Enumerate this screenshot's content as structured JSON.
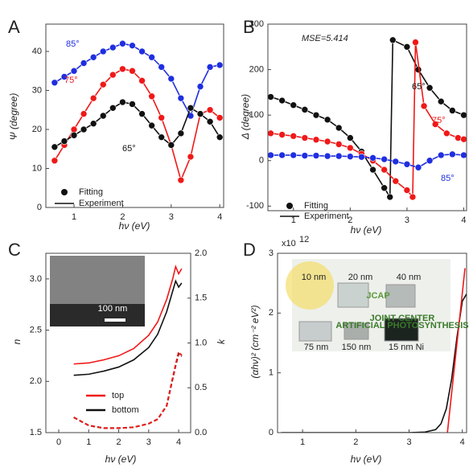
{
  "chart_data": [
    {
      "type": "line",
      "panel": "A",
      "xlabel": "hν (eV)",
      "ylabel": "Ψ (degree)",
      "xlim": [
        0.42,
        4.08
      ],
      "ylim": [
        0,
        47
      ],
      "xticks": [
        1,
        2,
        3,
        4
      ],
      "yticks": [
        0,
        10,
        20,
        30,
        40
      ],
      "legend": [
        "Fitting",
        "Experiment"
      ],
      "series": [
        {
          "name": "85°",
          "color": "#1f2ee0",
          "x": [
            0.6,
            0.8,
            1.0,
            1.2,
            1.4,
            1.6,
            1.8,
            2.0,
            2.2,
            2.4,
            2.6,
            2.8,
            3.0,
            3.2,
            3.4,
            3.6,
            3.8,
            4.0
          ],
          "values": [
            32,
            33.5,
            35,
            37,
            38.5,
            40,
            41,
            42,
            41.5,
            40,
            38.5,
            36,
            33,
            28,
            23.5,
            31,
            36,
            36.5
          ]
        },
        {
          "name": "75°",
          "color": "#f01818",
          "x": [
            0.6,
            0.8,
            1.0,
            1.2,
            1.4,
            1.6,
            1.8,
            2.0,
            2.2,
            2.4,
            2.6,
            2.8,
            3.0,
            3.2,
            3.4,
            3.6,
            3.8,
            4.0
          ],
          "values": [
            12,
            16,
            20,
            24,
            28,
            31.5,
            34,
            35.5,
            35,
            32.5,
            28.5,
            23,
            16,
            7,
            13,
            24,
            25,
            23
          ]
        },
        {
          "name": "65°",
          "color": "#111111",
          "x": [
            0.6,
            0.8,
            1.0,
            1.2,
            1.4,
            1.6,
            1.8,
            2.0,
            2.2,
            2.4,
            2.6,
            2.8,
            3.0,
            3.2,
            3.4,
            3.6,
            3.8,
            4.0
          ],
          "values": [
            15.5,
            17,
            18.5,
            20,
            21.5,
            23.5,
            25.5,
            27,
            26.5,
            24,
            21,
            18,
            16,
            19,
            25.5,
            24,
            22,
            18
          ]
        }
      ]
    },
    {
      "type": "line",
      "panel": "B",
      "xlabel": "hν (eV)",
      "ylabel": "Δ (degree)",
      "annotation": "MSE=5.414",
      "xlim": [
        0.55,
        4.05
      ],
      "ylim": [
        -110,
        300
      ],
      "xticks": [
        1,
        2,
        3,
        4
      ],
      "yticks": [
        -100,
        0,
        100,
        200,
        300
      ],
      "legend": [
        "Fitting",
        "Experiment"
      ],
      "series": [
        {
          "name": "65°",
          "color": "#111111",
          "x": [
            0.6,
            0.8,
            1.0,
            1.2,
            1.4,
            1.6,
            1.8,
            2.0,
            2.2,
            2.4,
            2.6,
            2.7,
            2.75,
            3.0,
            3.2,
            3.4,
            3.6,
            3.8,
            4.0
          ],
          "values": [
            140,
            132,
            122,
            112,
            100,
            90,
            72,
            50,
            20,
            -20,
            -60,
            -80,
            265,
            250,
            200,
            160,
            130,
            110,
            100
          ]
        },
        {
          "name": "75°",
          "color": "#f01818",
          "x": [
            0.6,
            0.8,
            1.0,
            1.2,
            1.4,
            1.6,
            1.8,
            2.0,
            2.2,
            2.4,
            2.6,
            2.8,
            3.0,
            3.1,
            3.15,
            3.3,
            3.5,
            3.7,
            3.9,
            4.0
          ],
          "values": [
            60,
            57,
            54,
            50,
            46,
            42,
            36,
            28,
            15,
            0,
            -20,
            -45,
            -65,
            -80,
            260,
            120,
            80,
            60,
            50,
            47
          ]
        },
        {
          "name": "85°",
          "color": "#1f2ee0",
          "x": [
            0.6,
            0.8,
            1.0,
            1.2,
            1.4,
            1.6,
            1.8,
            2.0,
            2.2,
            2.4,
            2.6,
            2.8,
            3.0,
            3.2,
            3.4,
            3.6,
            3.8,
            4.0
          ],
          "values": [
            12,
            12,
            12,
            11,
            11,
            10,
            10,
            9,
            8,
            6,
            3,
            -2,
            -8,
            -15,
            0,
            12,
            14,
            12
          ]
        }
      ]
    },
    {
      "type": "line",
      "panel": "C",
      "xlabel": "hν (eV)",
      "ylabel": "n",
      "y2label": "k",
      "inset": "100 nm",
      "xlim": [
        -0.43,
        4.4
      ],
      "ylim": [
        1.5,
        3.25
      ],
      "y2lim": [
        0,
        2.0
      ],
      "xticks": [
        0,
        1,
        2,
        3,
        4
      ],
      "yticks": [
        1.5,
        {
          "value": 2,
          "label": "2.0"
        },
        2.5,
        {
          "value": 3,
          "label": "3.0"
        }
      ],
      "y2ticks": [
        {
          "value": 0,
          "label": "0.0"
        },
        0.5,
        {
          "value": 1,
          "label": "1.0"
        },
        1.5,
        {
          "value": 2,
          "label": "2.0"
        }
      ],
      "series": [
        {
          "name": "top",
          "color": "#f01818",
          "x": [
            0.5,
            1.0,
            1.5,
            2.0,
            2.5,
            3.0,
            3.3,
            3.6,
            3.8,
            3.9,
            4.0,
            4.1
          ],
          "values": [
            2.17,
            2.18,
            2.21,
            2.25,
            2.32,
            2.45,
            2.58,
            2.8,
            3.0,
            3.12,
            3.05,
            3.1
          ]
        },
        {
          "name": "bottom",
          "color": "#111111",
          "x": [
            0.5,
            1.0,
            1.5,
            2.0,
            2.5,
            3.0,
            3.3,
            3.6,
            3.8,
            3.9,
            4.0,
            4.1
          ],
          "values": [
            2.06,
            2.07,
            2.1,
            2.14,
            2.21,
            2.33,
            2.46,
            2.68,
            2.88,
            2.98,
            2.92,
            2.96
          ]
        },
        {
          "color": "#111111",
          "axis": "y2",
          "dash": true,
          "x": [
            0.5,
            1.0,
            1.5,
            2.0,
            2.5,
            3.0,
            3.3,
            3.6,
            3.8,
            3.9,
            4.0,
            4.1
          ],
          "values": [
            0.17,
            0.08,
            0.05,
            0.05,
            0.06,
            0.1,
            0.15,
            0.3,
            0.6,
            0.75,
            0.88,
            0.85
          ]
        },
        {
          "color": "#f01818",
          "axis": "y2",
          "dash": true,
          "x": [
            0.5,
            1.0,
            1.5,
            2.0,
            2.5,
            3.0,
            3.3,
            3.6,
            3.8,
            3.9,
            4.0,
            4.1
          ],
          "values": [
            0.17,
            0.08,
            0.05,
            0.05,
            0.06,
            0.1,
            0.15,
            0.3,
            0.61,
            0.76,
            0.9,
            0.86
          ]
        }
      ]
    },
    {
      "type": "line",
      "panel": "D",
      "xlabel": "hν (eV)",
      "ylabel": "(αhν)² (cm⁻² eV²)",
      "scale": [
        "x10",
        "12"
      ],
      "inset": [
        "JCAP",
        "JOINT CENTER",
        "ARTIFICIAL PHOTOSYNTHESIS",
        "10 nm",
        "20 nm",
        "40 nm",
        "75 nm",
        "150 nm",
        "15 nm Ni"
      ],
      "xlim": [
        0.53,
        4.08
      ],
      "ylim": [
        0,
        3
      ],
      "xticks": [
        1,
        2,
        3,
        4
      ],
      "yticks": [
        0,
        1,
        2,
        3
      ],
      "series": [
        {
          "color": "#111111",
          "x": [
            0.6,
            1,
            2,
            3,
            3.3,
            3.5,
            3.6,
            3.7,
            3.8,
            3.9,
            4.0,
            4.08
          ],
          "values": [
            0,
            0,
            0,
            0,
            0.01,
            0.05,
            0.15,
            0.4,
            0.9,
            1.6,
            2.2,
            2.32
          ]
        },
        {
          "color": "#f01818",
          "x": [
            3.72,
            4.05
          ],
          "values": [
            0,
            2.75
          ]
        }
      ]
    }
  ]
}
